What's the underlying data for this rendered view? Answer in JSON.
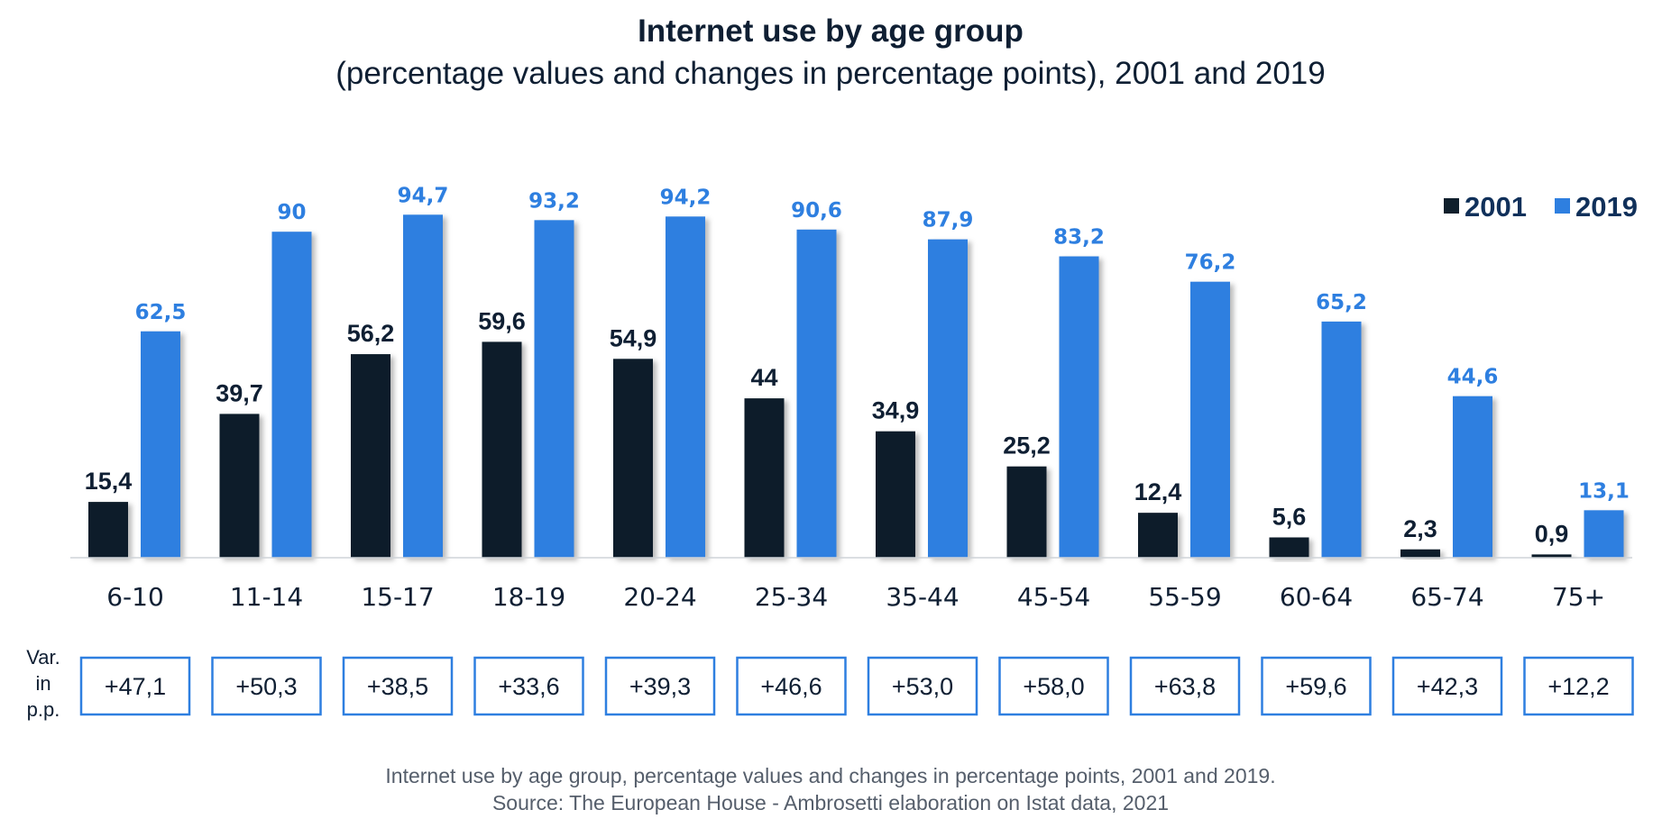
{
  "chart_data": {
    "type": "bar",
    "title": "Internet use by age group",
    "subtitle": "(percentage values and changes in percentage points), 2001 and 2019",
    "categories": [
      "6-10",
      "11-14",
      "15-17",
      "18-19",
      "20-24",
      "25-34",
      "35-44",
      "45-54",
      "55-59",
      "60-64",
      "65-74",
      "75+"
    ],
    "series": [
      {
        "name": "2001",
        "color": "#0f1f2c",
        "values": [
          15.4,
          39.7,
          56.2,
          59.6,
          54.9,
          44,
          34.9,
          25.2,
          12.4,
          5.6,
          2.3,
          0.9
        ],
        "labels": [
          "15,4",
          "39,7",
          "56,2",
          "59,6",
          "54,9",
          "44",
          "34,9",
          "25,2",
          "12,4",
          "5,6",
          "2,3",
          "0,9"
        ]
      },
      {
        "name": "2019",
        "color": "#2e7fe0",
        "values": [
          62.5,
          90,
          94.7,
          93.2,
          94.2,
          90.6,
          87.9,
          83.2,
          76.2,
          65.2,
          44.6,
          13.1
        ],
        "labels": [
          "62,5",
          "90",
          "94,7",
          "93,2",
          "94,2",
          "90,6",
          "87,9",
          "83,2",
          "76,2",
          "65,2",
          "44,6",
          "13,1"
        ]
      }
    ],
    "variation": {
      "label_lines": [
        "Var.",
        "in",
        "p.p."
      ],
      "values": [
        "+47,1",
        "+50,3",
        "+38,5",
        "+33,6",
        "+39,3",
        "+46,6",
        "+53,0",
        "+58,0",
        "+63,8",
        "+59,6",
        "+42,3",
        "+12,2"
      ]
    },
    "legend_position": "top-right",
    "ylim": [
      0,
      100
    ],
    "grid": false,
    "xlabel": "",
    "ylabel": ""
  },
  "footnote": {
    "line1": "Internet use by age group, percentage values and changes in percentage points, 2001 and 2019.",
    "line2": "Source: The European House - Ambrosetti elaboration on Istat data, 2021"
  }
}
